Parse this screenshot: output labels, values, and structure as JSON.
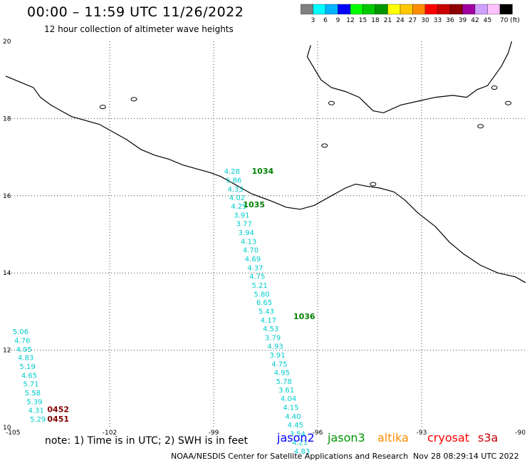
{
  "header": {
    "title": "00:00 – 11:59 UTC 11/26/2022",
    "subtitle": "12 hour collection of altimeter wave heights"
  },
  "legend": {
    "labels": [
      "3",
      "6",
      "9",
      "12",
      "15",
      "18",
      "21",
      "24",
      "27",
      "30",
      "33",
      "36",
      "39",
      "42",
      "45",
      "70 (ft)"
    ],
    "colors": [
      "#808080",
      "#00ffff",
      "#00b4ff",
      "#0000ff",
      "#00ff00",
      "#00c800",
      "#009600",
      "#ffff00",
      "#ffc800",
      "#ff8c00",
      "#ff0000",
      "#c80000",
      "#8c0000",
      "#a000a0",
      "#d0a0ff",
      "#ffc0ff",
      "#000000"
    ]
  },
  "axes": {
    "lon_labels": [
      "-105",
      "-102",
      "-99",
      "-96",
      "-93",
      "-90"
    ],
    "lat_labels": [
      "20",
      "18",
      "16",
      "14",
      "12",
      "10"
    ]
  },
  "tracks": {
    "track1": [
      {
        "lon": -98.7,
        "lat": 16.57,
        "value": "4.28"
      },
      {
        "lon": -98.65,
        "lat": 16.34,
        "value": "5.86"
      },
      {
        "lon": -98.6,
        "lat": 16.11,
        "value": "4.33"
      },
      {
        "lon": -98.55,
        "lat": 15.89,
        "value": "4.02"
      },
      {
        "lon": -98.5,
        "lat": 15.66,
        "value": "4.25"
      },
      {
        "lon": -98.42,
        "lat": 15.43,
        "value": "3.91"
      },
      {
        "lon": -98.35,
        "lat": 15.21,
        "value": "3.77"
      },
      {
        "lon": -98.29,
        "lat": 14.98,
        "value": "3.94"
      },
      {
        "lon": -98.22,
        "lat": 14.75,
        "value": "4.13"
      },
      {
        "lon": -98.16,
        "lat": 14.53,
        "value": "4.70"
      },
      {
        "lon": -98.1,
        "lat": 14.3,
        "value": "4.69"
      },
      {
        "lon": -98.03,
        "lat": 14.07,
        "value": "4.37"
      },
      {
        "lon": -97.97,
        "lat": 13.85,
        "value": "4.75"
      },
      {
        "lon": -97.9,
        "lat": 13.62,
        "value": "5.21"
      },
      {
        "lon": -97.84,
        "lat": 13.39,
        "value": "5.80"
      },
      {
        "lon": -97.77,
        "lat": 13.17,
        "value": "6.65"
      },
      {
        "lon": -97.71,
        "lat": 12.94,
        "value": "5.43"
      },
      {
        "lon": -97.65,
        "lat": 12.71,
        "value": "4.17"
      },
      {
        "lon": -97.58,
        "lat": 12.49,
        "value": "4.53"
      },
      {
        "lon": -97.52,
        "lat": 12.26,
        "value": "3.79"
      },
      {
        "lon": -97.45,
        "lat": 12.04,
        "value": "4.93"
      },
      {
        "lon": -97.39,
        "lat": 11.81,
        "value": "3.91"
      },
      {
        "lon": -97.33,
        "lat": 11.58,
        "value": "4.75"
      },
      {
        "lon": -97.26,
        "lat": 11.36,
        "value": "4.95"
      },
      {
        "lon": -97.2,
        "lat": 11.13,
        "value": "5.78"
      },
      {
        "lon": -97.13,
        "lat": 10.9,
        "value": "3.61"
      },
      {
        "lon": -97.07,
        "lat": 10.68,
        "value": "4.04"
      },
      {
        "lon": -97.0,
        "lat": 10.45,
        "value": "4.15"
      },
      {
        "lon": -96.94,
        "lat": 10.22,
        "value": "4.40"
      },
      {
        "lon": -96.87,
        "lat": 10.0,
        "value": "4.45"
      },
      {
        "lon": -96.81,
        "lat": 9.77,
        "value": "3.54"
      },
      {
        "lon": -96.74,
        "lat": 9.55,
        "value": "4.21"
      },
      {
        "lon": -96.68,
        "lat": 9.32,
        "value": "4.83"
      }
    ],
    "track2": [
      {
        "lon": -104.8,
        "lat": 12.42,
        "value": "5.06"
      },
      {
        "lon": -104.75,
        "lat": 12.19,
        "value": "4.76"
      },
      {
        "lon": -104.7,
        "lat": 11.96,
        "value": "4.95"
      },
      {
        "lon": -104.65,
        "lat": 11.74,
        "value": "4.83"
      },
      {
        "lon": -104.6,
        "lat": 11.51,
        "value": "5.19"
      },
      {
        "lon": -104.55,
        "lat": 11.28,
        "value": "4.65"
      },
      {
        "lon": -104.5,
        "lat": 11.06,
        "value": "5.71"
      },
      {
        "lon": -104.45,
        "lat": 10.83,
        "value": "5.58"
      },
      {
        "lon": -104.4,
        "lat": 10.6,
        "value": "5.39"
      },
      {
        "lon": -104.35,
        "lat": 10.38,
        "value": "4.31"
      },
      {
        "lon": -104.3,
        "lat": 10.15,
        "value": "5.29"
      }
    ]
  },
  "time_labels": [
    {
      "lon": -97.9,
      "lat": 16.57,
      "text": "1034",
      "color": "#008000"
    },
    {
      "lon": -98.15,
      "lat": 15.7,
      "text": "1035",
      "color": "#008000"
    },
    {
      "lon": -96.7,
      "lat": 12.8,
      "text": "1036",
      "color": "#008000"
    },
    {
      "lon": -103.8,
      "lat": 10.4,
      "text": "0452",
      "color": "#800000"
    },
    {
      "lon": -103.8,
      "lat": 10.15,
      "text": "0451",
      "color": "#800000"
    }
  ],
  "note": "note:  1) Time is in UTC;  2) SWH is in feet",
  "satellites": [
    {
      "name": "jason2",
      "color": "#0000ff"
    },
    {
      "name": "jason3",
      "color": "#009600"
    },
    {
      "name": "altika",
      "color": "#ff8c00"
    },
    {
      "name": "cryosat",
      "color": "#ff0000"
    },
    {
      "name": "s3a",
      "color": "#c80000"
    }
  ],
  "footer": {
    "left": "NOAA/NESDIS Center for Satellite Applications and Research",
    "right": "Nov 28 08:29:14 UTC 2022"
  }
}
